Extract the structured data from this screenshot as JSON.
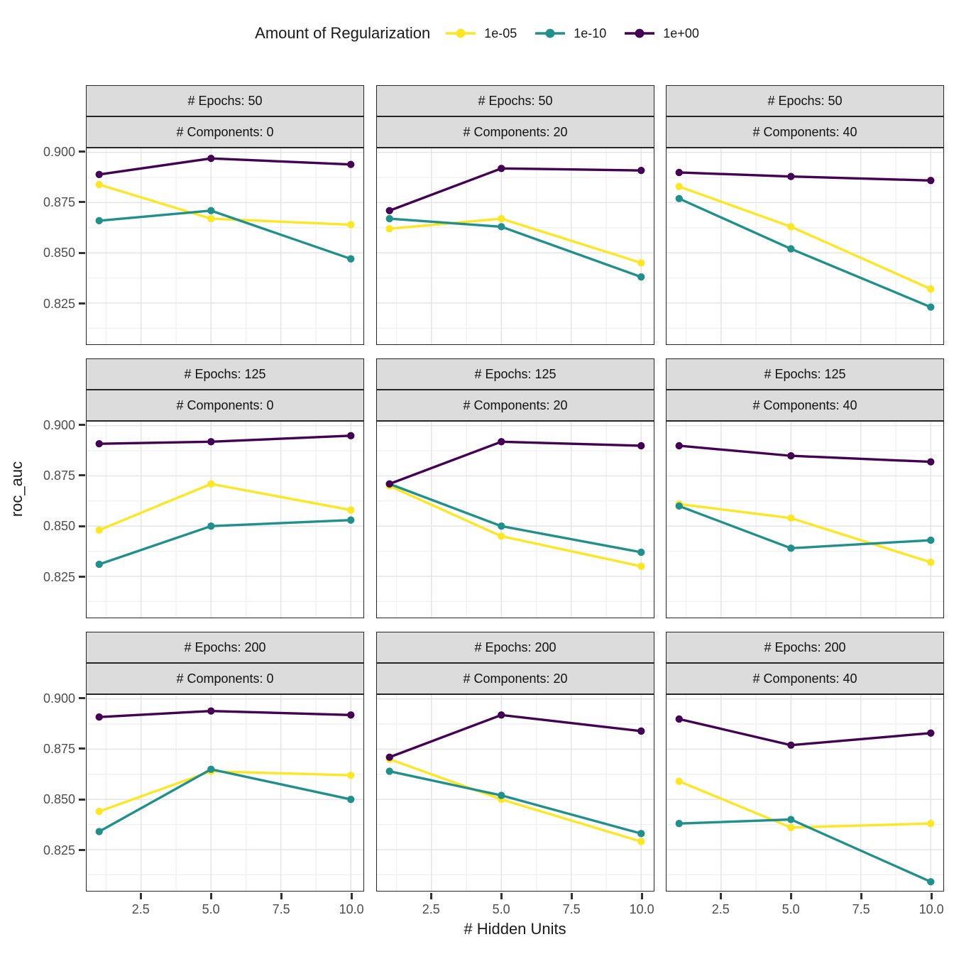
{
  "page": {
    "background": "#ffffff"
  },
  "legend": {
    "title": "Amount of Regularization",
    "entries": [
      {
        "label": "1e-05",
        "color": "#FDE725"
      },
      {
        "label": "1e-10",
        "color": "#21908C"
      },
      {
        "label": "1e+00",
        "color": "#440154"
      }
    ]
  },
  "axes": {
    "x_title": "# Hidden Units",
    "y_title": "roc_auc",
    "x_tick_labels": [
      "2.5",
      "5.0",
      "7.5",
      "10.0"
    ],
    "x_tick_values": [
      2.5,
      5,
      7.5,
      10
    ],
    "x_minor_values": [
      1.25,
      3.75,
      6.25,
      8.75
    ],
    "y_tick_labels": [
      "0.900",
      "0.875",
      "0.850",
      "0.825"
    ],
    "y_tick_values": [
      0.9,
      0.875,
      0.85,
      0.825
    ],
    "y_minor_values": [
      0.8875,
      0.8625,
      0.8375,
      0.8125
    ],
    "x_domain": [
      0.55,
      10.45
    ],
    "y_domain": [
      0.8045,
      0.902
    ],
    "grid": true,
    "legend_position": "top"
  },
  "styles": {
    "strip_bg": "#dcdcdc",
    "panel_border": "#262626",
    "grid_major": "#e3e3e3",
    "grid_minor": "#f1f1f1",
    "axis_text": "#4d4d4d",
    "tick_color": "#333333"
  },
  "chart_data": {
    "type": "line",
    "title": "",
    "xlabel": "# Hidden Units",
    "ylabel": "roc_auc",
    "legend_title": "Amount of Regularization",
    "x": [
      1,
      5,
      10
    ],
    "series_colors": {
      "1e-05": "#FDE725",
      "1e-10": "#21908C",
      "1e+00": "#440154"
    },
    "facets": [
      {
        "strip_epochs": "# Epochs: 50",
        "strip_components": "# Components: 0",
        "series": [
          {
            "name": "1e-05",
            "values": [
              0.884,
              0.867,
              0.864
            ]
          },
          {
            "name": "1e-10",
            "values": [
              0.866,
              0.871,
              0.847
            ]
          },
          {
            "name": "1e+00",
            "values": [
              0.889,
              0.897,
              0.894
            ]
          }
        ]
      },
      {
        "strip_epochs": "# Epochs: 50",
        "strip_components": "# Components: 20",
        "series": [
          {
            "name": "1e-05",
            "values": [
              0.862,
              0.867,
              0.845
            ]
          },
          {
            "name": "1e-10",
            "values": [
              0.867,
              0.863,
              0.838
            ]
          },
          {
            "name": "1e+00",
            "values": [
              0.871,
              0.892,
              0.891
            ]
          }
        ]
      },
      {
        "strip_epochs": "# Epochs: 50",
        "strip_components": "# Components: 40",
        "series": [
          {
            "name": "1e-05",
            "values": [
              0.883,
              0.863,
              0.832
            ]
          },
          {
            "name": "1e-10",
            "values": [
              0.877,
              0.852,
              0.823
            ]
          },
          {
            "name": "1e+00",
            "values": [
              0.89,
              0.888,
              0.886
            ]
          }
        ]
      },
      {
        "strip_epochs": "# Epochs: 125",
        "strip_components": "# Components: 0",
        "series": [
          {
            "name": "1e-05",
            "values": [
              0.848,
              0.871,
              0.858
            ]
          },
          {
            "name": "1e-10",
            "values": [
              0.831,
              0.85,
              0.853
            ]
          },
          {
            "name": "1e+00",
            "values": [
              0.891,
              0.892,
              0.895
            ]
          }
        ]
      },
      {
        "strip_epochs": "# Epochs: 125",
        "strip_components": "# Components: 20",
        "series": [
          {
            "name": "1e-05",
            "values": [
              0.87,
              0.845,
              0.83
            ]
          },
          {
            "name": "1e-10",
            "values": [
              0.871,
              0.85,
              0.837
            ]
          },
          {
            "name": "1e+00",
            "values": [
              0.871,
              0.892,
              0.89
            ]
          }
        ]
      },
      {
        "strip_epochs": "# Epochs: 125",
        "strip_components": "# Components: 40",
        "series": [
          {
            "name": "1e-05",
            "values": [
              0.861,
              0.854,
              0.832
            ]
          },
          {
            "name": "1e-10",
            "values": [
              0.86,
              0.839,
              0.843
            ]
          },
          {
            "name": "1e+00",
            "values": [
              0.89,
              0.885,
              0.882
            ]
          }
        ]
      },
      {
        "strip_epochs": "# Epochs: 200",
        "strip_components": "# Components: 0",
        "series": [
          {
            "name": "1e-05",
            "values": [
              0.844,
              0.864,
              0.862
            ]
          },
          {
            "name": "1e-10",
            "values": [
              0.834,
              0.865,
              0.85
            ]
          },
          {
            "name": "1e+00",
            "values": [
              0.891,
              0.894,
              0.892
            ]
          }
        ]
      },
      {
        "strip_epochs": "# Epochs: 200",
        "strip_components": "# Components: 20",
        "series": [
          {
            "name": "1e-05",
            "values": [
              0.87,
              0.85,
              0.829
            ]
          },
          {
            "name": "1e-10",
            "values": [
              0.864,
              0.852,
              0.833
            ]
          },
          {
            "name": "1e+00",
            "values": [
              0.871,
              0.892,
              0.884
            ]
          }
        ]
      },
      {
        "strip_epochs": "# Epochs: 200",
        "strip_components": "# Components: 40",
        "series": [
          {
            "name": "1e-05",
            "values": [
              0.859,
              0.836,
              0.838
            ]
          },
          {
            "name": "1e-10",
            "values": [
              0.838,
              0.84,
              0.809
            ]
          },
          {
            "name": "1e+00",
            "values": [
              0.89,
              0.877,
              0.883
            ]
          }
        ]
      }
    ]
  }
}
